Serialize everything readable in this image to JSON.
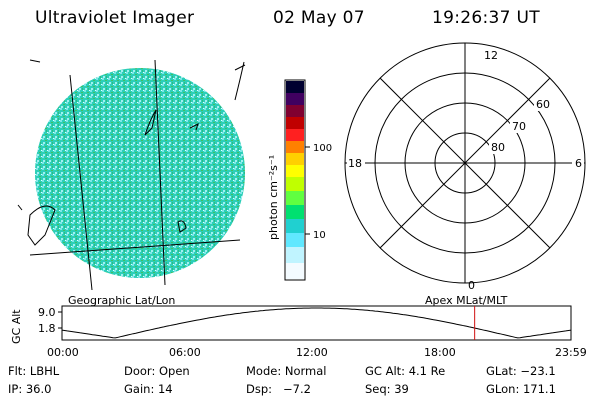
{
  "header": {
    "instrument": "Ultraviolet Imager",
    "date": "02 May 07",
    "time": "19:26:37 UT"
  },
  "colorbar": {
    "label": "photon cm⁻²s⁻¹",
    "ticks": [
      "100",
      "10"
    ],
    "colors": [
      "#000030",
      "#400060",
      "#800030",
      "#c00000",
      "#ff2020",
      "#ff8000",
      "#ffd000",
      "#ffff00",
      "#c0ff00",
      "#60ff40",
      "#00e070",
      "#20d0d0",
      "#60e8ff",
      "#c0f4ff",
      "#ffffff"
    ]
  },
  "polar_plot": {
    "mlt_labels": {
      "top": "12",
      "right": "6",
      "bottom": "0",
      "left": "18"
    },
    "lat_labels": [
      "60",
      "70",
      "80"
    ]
  },
  "projections": {
    "left": "Geographic Lat/Lon",
    "right": "Apex MLat/MLT"
  },
  "altitude_plot": {
    "ylabel": "GC Alt",
    "yticks": [
      "9.0",
      "1.8"
    ],
    "xticks": [
      "00:00",
      "06:00",
      "12:00",
      "18:00",
      "23:59"
    ],
    "current_time_marker": "19:26:37",
    "marker_color": "#d01010"
  },
  "info": {
    "row1": [
      "Flt: LBHL",
      "Door: Open",
      "Mode: Normal",
      "GC Alt: 4.1 Re",
      "GLat: −23.1"
    ],
    "row2": [
      "IP: 36.0",
      "Gain: 14",
      "Dsp:   −7.2",
      "Seq: 39",
      "GLon: 171.1"
    ]
  }
}
